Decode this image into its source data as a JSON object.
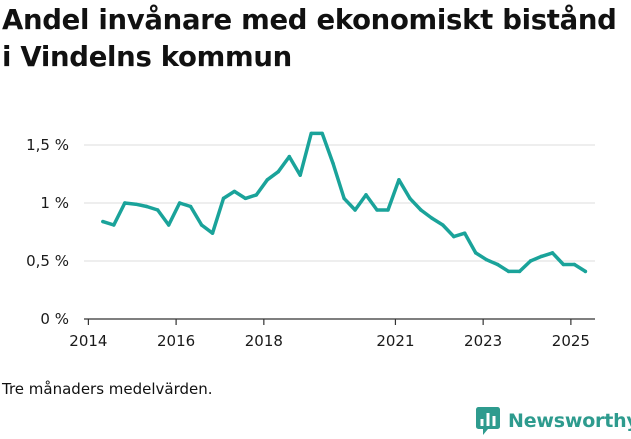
{
  "page": {
    "title": "Andel invånare med ekonomiskt bistånd i Vindelns kommun",
    "note": "Tre månaders medelvärden.",
    "brand": "Newsworthy",
    "brand_icon": "bar-chart-logo-icon"
  },
  "colors": {
    "line": "#1aa39a",
    "axis": "#333333",
    "grid": "#dddddd",
    "brand": "#2e9b8e"
  },
  "chart_data": {
    "type": "line",
    "title": "Andel invånare med ekonomiskt bistånd i Vindelns kommun",
    "xlabel": "",
    "ylabel": "",
    "xlim": [
      2013.9,
      2025.55
    ],
    "ylim": [
      0,
      1.5
    ],
    "grid": "horizontal",
    "legend": "none",
    "x_ticks": [
      {
        "value": 2014,
        "label": "2014"
      },
      {
        "value": 2016,
        "label": "2016"
      },
      {
        "value": 2018,
        "label": "2018"
      },
      {
        "value": 2021,
        "label": "2021"
      },
      {
        "value": 2023,
        "label": "2023"
      },
      {
        "value": 2025,
        "label": "2025"
      }
    ],
    "y_ticks": [
      {
        "value": 0,
        "label": "0 %"
      },
      {
        "value": 0.5,
        "label": "0,5 %"
      },
      {
        "value": 1,
        "label": "1 %"
      },
      {
        "value": 1.5,
        "label": "1,5 %"
      }
    ],
    "series": [
      {
        "x": [
          2014.33,
          2014.58,
          2014.83,
          2015.08,
          2015.33,
          2015.58,
          2015.83,
          2016.08,
          2016.33,
          2016.58,
          2016.83,
          2017.08,
          2017.33,
          2017.58,
          2017.83,
          2018.08,
          2018.33,
          2018.58,
          2018.83,
          2019.08,
          2019.33,
          2019.58,
          2019.83,
          2020.08,
          2020.33,
          2020.58,
          2020.83,
          2021.08,
          2021.33,
          2021.58,
          2021.83,
          2022.08,
          2022.33,
          2022.58,
          2022.83,
          2023.08,
          2023.33,
          2023.58,
          2023.83,
          2024.08,
          2024.33,
          2024.58,
          2024.83,
          2025.08,
          2025.33
        ],
        "values": [
          0.84,
          0.81,
          1.0,
          0.99,
          0.97,
          0.94,
          0.81,
          1.0,
          0.97,
          0.81,
          0.74,
          1.04,
          1.1,
          1.04,
          1.07,
          1.2,
          1.27,
          1.4,
          1.24,
          1.6,
          1.6,
          1.34,
          1.04,
          0.94,
          1.07,
          0.94,
          0.94,
          1.2,
          1.04,
          0.94,
          0.87,
          0.81,
          0.71,
          0.74,
          0.57,
          0.51,
          0.47,
          0.41,
          0.41,
          0.5,
          0.54,
          0.57,
          0.47,
          0.47,
          0.41
        ]
      }
    ]
  }
}
